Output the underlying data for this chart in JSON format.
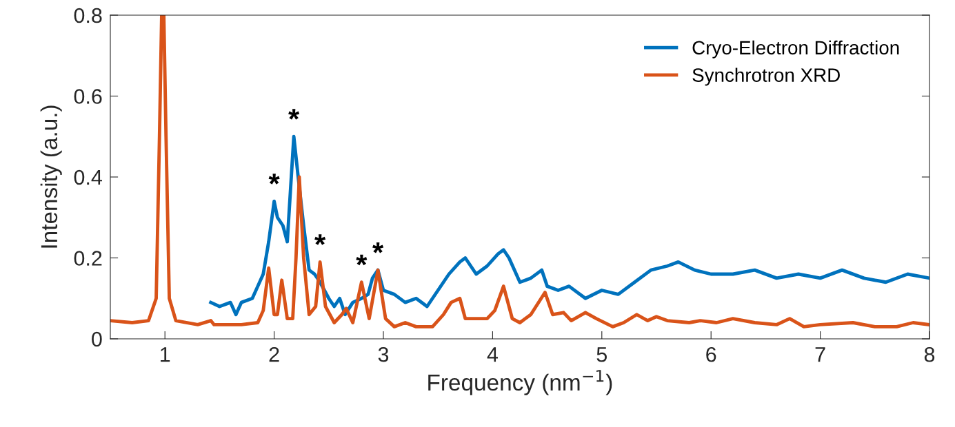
{
  "chart_data": {
    "type": "line",
    "xlabel": "Frequency (nm$^{−1}$)",
    "ylabel": "Intensity (a.u.)",
    "xlim": [
      0.5,
      8
    ],
    "xticks": [
      1,
      2,
      3,
      4,
      5,
      6,
      7,
      8
    ],
    "ylim": [
      0,
      0.8
    ],
    "yticks": [
      0,
      0.2,
      0.4,
      0.6,
      0.8
    ],
    "legend": "top right",
    "grid": false,
    "line_style": "solid",
    "marker": "none",
    "series": [
      {
        "name": "Cryo-Electron Diffraction",
        "color": "#0072bd",
        "x": [
          1.42,
          1.5,
          1.6,
          1.65,
          1.7,
          1.8,
          1.85,
          1.9,
          1.95,
          2.0,
          2.03,
          2.08,
          2.12,
          2.18,
          2.22,
          2.27,
          2.32,
          2.37,
          2.42,
          2.5,
          2.55,
          2.6,
          2.65,
          2.72,
          2.8,
          2.86,
          2.9,
          2.95,
          3.0,
          3.1,
          3.2,
          3.3,
          3.4,
          3.5,
          3.6,
          3.7,
          3.75,
          3.85,
          3.95,
          4.05,
          4.1,
          4.15,
          4.25,
          4.35,
          4.45,
          4.5,
          4.6,
          4.7,
          4.85,
          5.0,
          5.15,
          5.3,
          5.45,
          5.6,
          5.7,
          5.85,
          6.0,
          6.2,
          6.4,
          6.6,
          6.8,
          7.0,
          7.2,
          7.4,
          7.6,
          7.8,
          8.0
        ],
        "values": [
          0.09,
          0.08,
          0.09,
          0.06,
          0.09,
          0.1,
          0.13,
          0.16,
          0.24,
          0.34,
          0.3,
          0.28,
          0.24,
          0.5,
          0.4,
          0.28,
          0.17,
          0.16,
          0.14,
          0.1,
          0.08,
          0.1,
          0.06,
          0.09,
          0.1,
          0.11,
          0.15,
          0.17,
          0.12,
          0.11,
          0.09,
          0.1,
          0.08,
          0.12,
          0.16,
          0.19,
          0.2,
          0.16,
          0.18,
          0.21,
          0.22,
          0.2,
          0.14,
          0.15,
          0.17,
          0.13,
          0.12,
          0.13,
          0.1,
          0.12,
          0.11,
          0.14,
          0.17,
          0.18,
          0.19,
          0.17,
          0.16,
          0.16,
          0.17,
          0.15,
          0.16,
          0.15,
          0.17,
          0.15,
          0.14,
          0.16,
          0.15
        ]
      },
      {
        "name": "Synchrotron XRD",
        "color": "#d95319",
        "x": [
          0.5,
          0.7,
          0.85,
          0.92,
          0.95,
          0.97,
          0.99,
          1.01,
          1.04,
          1.1,
          1.3,
          1.42,
          1.45,
          1.7,
          1.85,
          1.9,
          1.95,
          2.0,
          2.03,
          2.07,
          2.12,
          2.17,
          2.2,
          2.23,
          2.27,
          2.32,
          2.38,
          2.42,
          2.47,
          2.55,
          2.62,
          2.66,
          2.72,
          2.8,
          2.87,
          2.95,
          3.02,
          3.1,
          3.2,
          3.3,
          3.45,
          3.55,
          3.62,
          3.7,
          3.75,
          3.85,
          3.95,
          4.02,
          4.1,
          4.18,
          4.25,
          4.35,
          4.48,
          4.55,
          4.65,
          4.72,
          4.85,
          4.95,
          5.1,
          5.2,
          5.32,
          5.42,
          5.5,
          5.6,
          5.8,
          5.9,
          6.05,
          6.2,
          6.4,
          6.6,
          6.72,
          6.85,
          7.0,
          7.3,
          7.5,
          7.7,
          7.85,
          8.0
        ],
        "values": [
          0.045,
          0.04,
          0.045,
          0.1,
          0.5,
          0.8,
          0.8,
          0.5,
          0.1,
          0.045,
          0.035,
          0.045,
          0.035,
          0.035,
          0.04,
          0.07,
          0.175,
          0.06,
          0.06,
          0.145,
          0.05,
          0.05,
          0.2,
          0.4,
          0.2,
          0.06,
          0.08,
          0.19,
          0.08,
          0.04,
          0.06,
          0.075,
          0.04,
          0.14,
          0.05,
          0.17,
          0.05,
          0.03,
          0.04,
          0.03,
          0.03,
          0.06,
          0.09,
          0.1,
          0.05,
          0.05,
          0.05,
          0.07,
          0.13,
          0.05,
          0.04,
          0.06,
          0.115,
          0.06,
          0.065,
          0.045,
          0.065,
          0.05,
          0.03,
          0.04,
          0.06,
          0.045,
          0.055,
          0.045,
          0.04,
          0.045,
          0.04,
          0.05,
          0.04,
          0.035,
          0.05,
          0.03,
          0.035,
          0.04,
          0.03,
          0.03,
          0.04,
          0.035
        ]
      }
    ],
    "annotations": [
      {
        "text": "*",
        "x": 2.0,
        "y": 0.34
      },
      {
        "text": "*",
        "x": 2.18,
        "y": 0.5
      },
      {
        "text": "*",
        "x": 2.42,
        "y": 0.19
      },
      {
        "text": "*",
        "x": 2.8,
        "y": 0.14
      },
      {
        "text": "*",
        "x": 2.95,
        "y": 0.17
      }
    ]
  }
}
